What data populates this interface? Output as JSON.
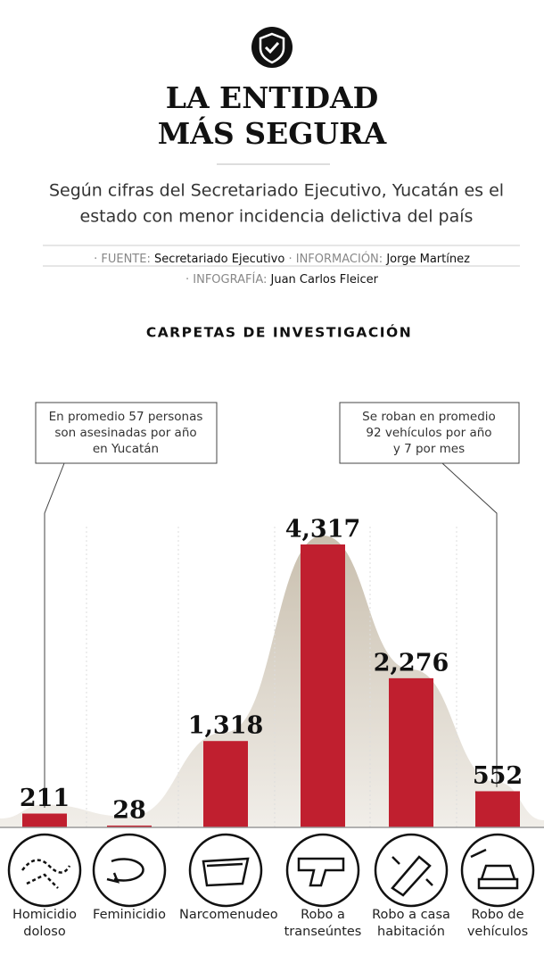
{
  "header": {
    "title_lines": [
      "LA ENTIDAD",
      "MÁS SEGURA"
    ],
    "subtitle_lines": [
      "Según cifras del Secretariado Ejecutivo, Yucatán es el",
      "estado con menor incidencia delictiva del país"
    ],
    "credits": [
      [
        {
          "label": "· FUENTE:",
          "text": "Secretariado Ejecutivo"
        },
        {
          "label": "· INFORMACIÓN:",
          "text": "Jorge Martínez"
        }
      ],
      [
        {
          "label": "· INFOGRAFÍA:",
          "text": "Juan Carlos Fleicer"
        }
      ]
    ]
  },
  "chart_data": {
    "type": "bar",
    "title": "CARPETAS DE INVESTIGACIÓN",
    "categories": [
      "Homicidio doloso",
      "Feminicidio",
      "Narcomenudeo",
      "Robo a transeúntes",
      "Robo a casa habitación",
      "Robo de vehículos"
    ],
    "values": [
      211,
      28,
      1318,
      4317,
      2276,
      552
    ],
    "value_labels": [
      "211",
      "28",
      "1,318",
      "4,317",
      "2,276",
      "552"
    ],
    "color": "#c01f2f",
    "annotations": [
      {
        "lines": [
          "En promedio 57 personas",
          "son asesinadas por año",
          "en Yucatán"
        ]
      },
      {
        "lines": [
          "Se roban en promedio",
          "92 vehículos por año",
          "y 7 por mes"
        ]
      }
    ]
  }
}
